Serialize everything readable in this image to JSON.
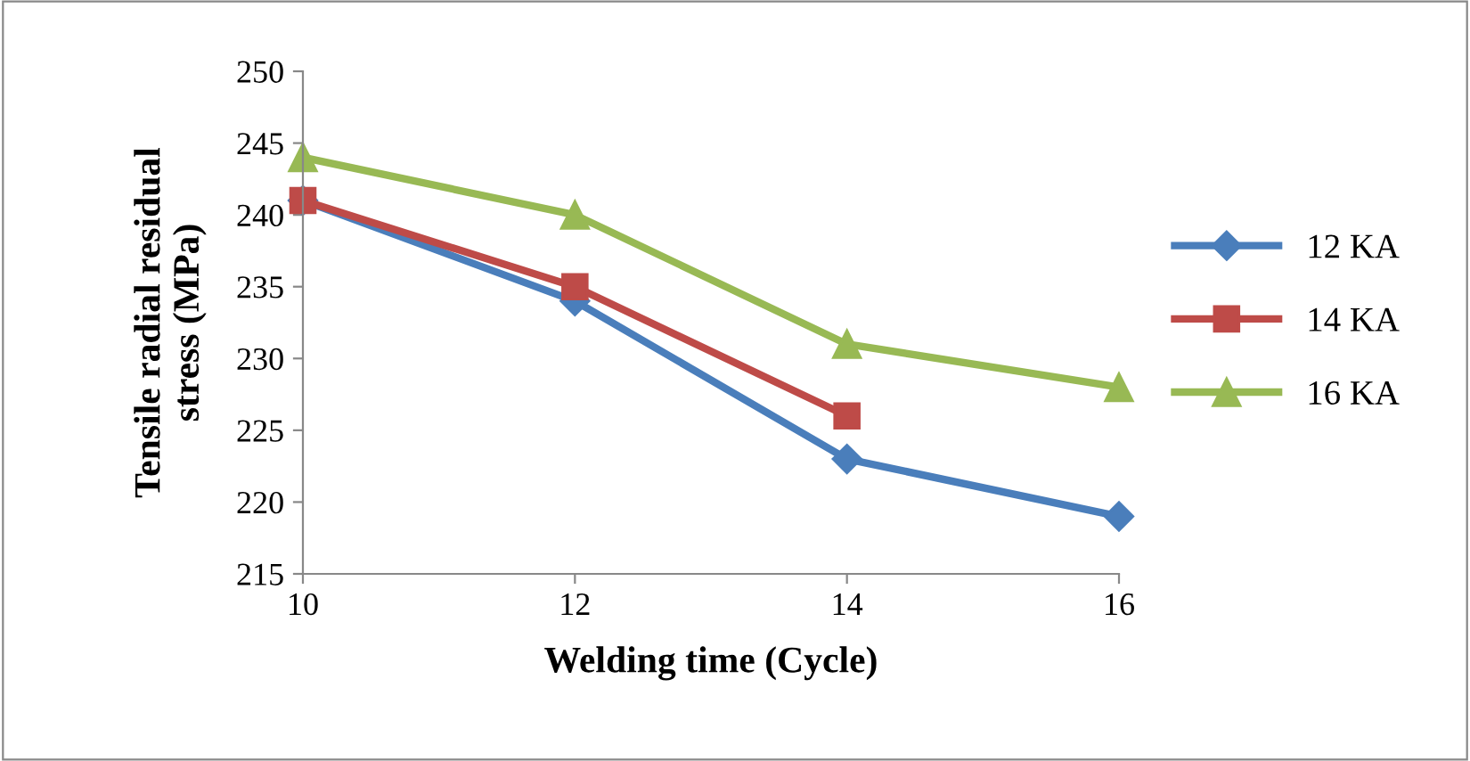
{
  "chart_data": {
    "type": "line",
    "xlabel": "Welding time (Cycle)",
    "ylabel": "Tensile radial residual\nstress (MPa)",
    "x": [
      10,
      12,
      14,
      16
    ],
    "series": [
      {
        "name": "12 KA",
        "color": "#4a7ebb",
        "marker": "diamond",
        "values": [
          241,
          234,
          223,
          219
        ]
      },
      {
        "name": "14 KA",
        "color": "#be4b48",
        "marker": "square",
        "values": [
          241,
          235,
          226,
          null
        ]
      },
      {
        "name": "16 KA",
        "color": "#98b954",
        "marker": "triangle",
        "values": [
          244,
          240,
          231,
          228
        ]
      }
    ],
    "xlim": [
      10,
      16
    ],
    "xticks": [
      10,
      12,
      14,
      16
    ],
    "ylim": [
      215,
      250
    ],
    "yticks": [
      215,
      220,
      225,
      230,
      235,
      240,
      245,
      250
    ],
    "grid": false,
    "legend": "right",
    "line_style": "solid"
  }
}
